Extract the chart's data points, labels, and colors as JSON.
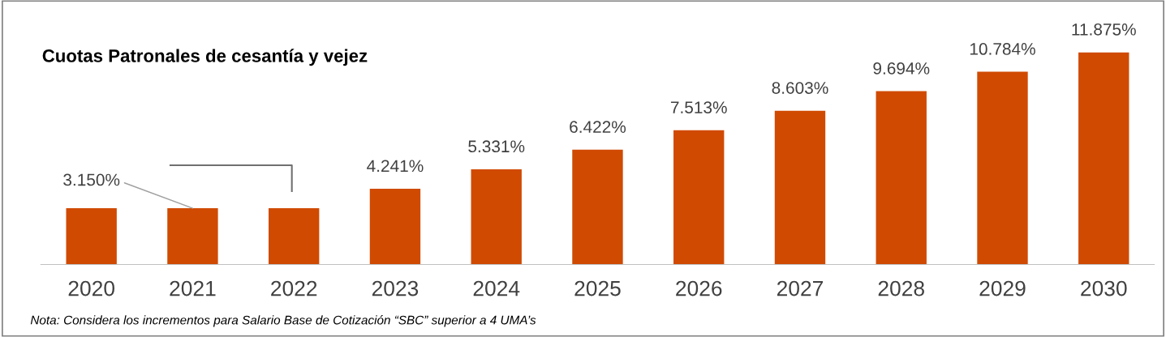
{
  "chart_data": {
    "type": "bar",
    "title": "Cuotas Patronales de cesantía y vejez",
    "categories": [
      "2020",
      "2021",
      "2022",
      "2023",
      "2024",
      "2025",
      "2026",
      "2027",
      "2028",
      "2029",
      "2030"
    ],
    "values": [
      3.15,
      3.15,
      3.15,
      4.241,
      5.331,
      6.422,
      7.513,
      8.603,
      9.694,
      10.784,
      11.875
    ],
    "value_labels": [
      "3.150%",
      null,
      null,
      "4.241%",
      "5.331%",
      "6.422%",
      "7.513%",
      "8.603%",
      "9.694%",
      "10.784%",
      "11.875%"
    ],
    "color": "#d04a02",
    "tick_labels": "x",
    "grid": false,
    "legend": false,
    "annotations": [
      "Nota: Considera los incrementos para Salario Base de Cotización “SBC” superior a 4 UMA’s"
    ]
  }
}
